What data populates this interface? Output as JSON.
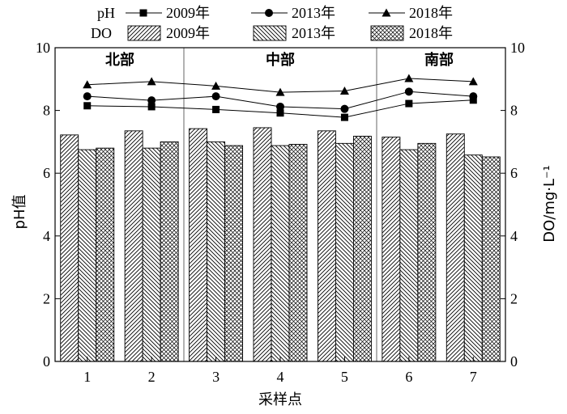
{
  "chart_data": {
    "type": "bar",
    "categories": [
      "1",
      "2",
      "3",
      "4",
      "5",
      "6",
      "7"
    ],
    "xlabel": "采样点",
    "ylabel": "pH值",
    "y2label": "DO/mg·L⁻¹",
    "ylim": [
      0,
      10
    ],
    "y2lim": [
      0,
      10
    ],
    "yticks": [
      0,
      2,
      4,
      6,
      8,
      10
    ],
    "regions": [
      {
        "label": "北部"
      },
      {
        "label": "中部"
      },
      {
        "label": "南部"
      }
    ],
    "legend_position": "top",
    "legend_group_labels": [
      "pH",
      "DO"
    ],
    "bar_series": [
      {
        "name": "2009年",
        "hatch": "diagonal-forward",
        "values": [
          7.22,
          7.35,
          7.42,
          7.45,
          7.35,
          7.15,
          7.25
        ]
      },
      {
        "name": "2013年",
        "hatch": "diagonal-back",
        "values": [
          6.75,
          6.8,
          7.0,
          6.88,
          6.95,
          6.75,
          6.58
        ]
      },
      {
        "name": "2018年",
        "hatch": "crosshatch",
        "values": [
          6.8,
          7.0,
          6.88,
          6.92,
          7.18,
          6.95,
          6.52
        ]
      }
    ],
    "line_series": [
      {
        "name": "2009年",
        "marker": "square",
        "values": [
          8.15,
          8.12,
          8.03,
          7.92,
          7.78,
          8.22,
          8.33
        ]
      },
      {
        "name": "2013年",
        "marker": "circle",
        "values": [
          8.45,
          8.32,
          8.45,
          8.12,
          8.05,
          8.6,
          8.45
        ]
      },
      {
        "name": "2018年",
        "marker": "triangle",
        "values": [
          8.82,
          8.92,
          8.78,
          8.58,
          8.62,
          9.02,
          8.92
        ]
      }
    ]
  }
}
